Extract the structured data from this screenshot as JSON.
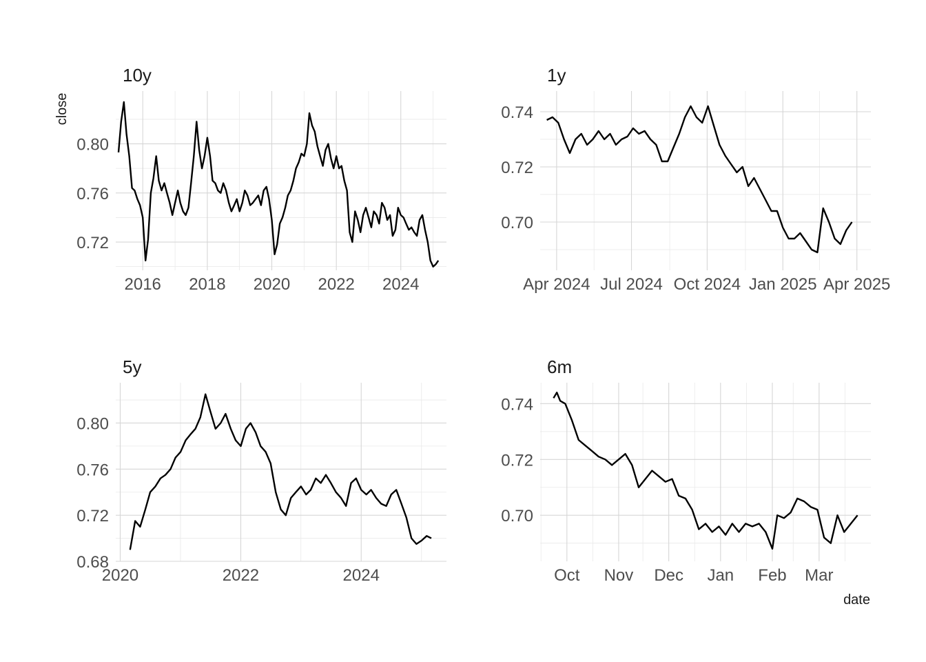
{
  "chart_data": [
    {
      "type": "line",
      "title": "10y",
      "xlabel": "",
      "ylabel": "close",
      "x_ticks": [
        {
          "value": "2016-01-01",
          "label": "2016"
        },
        {
          "value": "2018-01-01",
          "label": "2018"
        },
        {
          "value": "2020-01-01",
          "label": "2020"
        },
        {
          "value": "2022-01-01",
          "label": "2022"
        },
        {
          "value": "2024-01-01",
          "label": "2024"
        }
      ],
      "y_ticks": [
        0.72,
        0.76,
        0.8
      ],
      "xlim": [
        "2015-03-01",
        "2025-06-01"
      ],
      "ylim": [
        0.697,
        0.843
      ],
      "grid": true,
      "series": [
        {
          "x": [
            "2015-04",
            "2015-05",
            "2015-06",
            "2015-07",
            "2015-08",
            "2015-09",
            "2015-10",
            "2015-11",
            "2015-12",
            "2016-01",
            "2016-02",
            "2016-03",
            "2016-04",
            "2016-05",
            "2016-06",
            "2016-07",
            "2016-08",
            "2016-09",
            "2016-10",
            "2016-11",
            "2016-12",
            "2017-01",
            "2017-02",
            "2017-03",
            "2017-04",
            "2017-05",
            "2017-06",
            "2017-07",
            "2017-08",
            "2017-09",
            "2017-10",
            "2017-11",
            "2017-12",
            "2018-01",
            "2018-02",
            "2018-03",
            "2018-04",
            "2018-05",
            "2018-06",
            "2018-07",
            "2018-08",
            "2018-09",
            "2018-10",
            "2018-11",
            "2018-12",
            "2019-01",
            "2019-02",
            "2019-03",
            "2019-04",
            "2019-05",
            "2019-06",
            "2019-07",
            "2019-08",
            "2019-09",
            "2019-10",
            "2019-11",
            "2019-12",
            "2020-01",
            "2020-02",
            "2020-03",
            "2020-04",
            "2020-05",
            "2020-06",
            "2020-07",
            "2020-08",
            "2020-09",
            "2020-10",
            "2020-11",
            "2020-12",
            "2021-01",
            "2021-02",
            "2021-03",
            "2021-04",
            "2021-05",
            "2021-06",
            "2021-07",
            "2021-08",
            "2021-09",
            "2021-10",
            "2021-11",
            "2021-12",
            "2022-01",
            "2022-02",
            "2022-03",
            "2022-04",
            "2022-05",
            "2022-06",
            "2022-07",
            "2022-08",
            "2022-09",
            "2022-10",
            "2022-11",
            "2022-12",
            "2023-01",
            "2023-02",
            "2023-03",
            "2023-04",
            "2023-05",
            "2023-06",
            "2023-07",
            "2023-08",
            "2023-09",
            "2023-10",
            "2023-11",
            "2023-12",
            "2024-01",
            "2024-02",
            "2024-03",
            "2024-04",
            "2024-05",
            "2024-06",
            "2024-07",
            "2024-08",
            "2024-09",
            "2024-10",
            "2024-11",
            "2024-12",
            "2025-01",
            "2025-02",
            "2025-03"
          ],
          "y": [
            0.793,
            0.818,
            0.834,
            0.808,
            0.79,
            0.764,
            0.762,
            0.755,
            0.75,
            0.74,
            0.705,
            0.722,
            0.76,
            0.772,
            0.79,
            0.77,
            0.762,
            0.768,
            0.76,
            0.752,
            0.742,
            0.752,
            0.762,
            0.752,
            0.745,
            0.742,
            0.748,
            0.768,
            0.79,
            0.818,
            0.795,
            0.78,
            0.79,
            0.805,
            0.79,
            0.77,
            0.768,
            0.762,
            0.76,
            0.768,
            0.762,
            0.752,
            0.745,
            0.75,
            0.755,
            0.745,
            0.752,
            0.762,
            0.758,
            0.75,
            0.752,
            0.755,
            0.758,
            0.75,
            0.762,
            0.765,
            0.755,
            0.738,
            0.71,
            0.718,
            0.735,
            0.74,
            0.748,
            0.758,
            0.762,
            0.77,
            0.78,
            0.785,
            0.792,
            0.79,
            0.8,
            0.825,
            0.815,
            0.81,
            0.798,
            0.79,
            0.782,
            0.795,
            0.8,
            0.788,
            0.78,
            0.79,
            0.78,
            0.782,
            0.77,
            0.762,
            0.728,
            0.72,
            0.745,
            0.738,
            0.728,
            0.742,
            0.748,
            0.74,
            0.732,
            0.745,
            0.742,
            0.735,
            0.752,
            0.748,
            0.738,
            0.742,
            0.725,
            0.73,
            0.748,
            0.742,
            0.74,
            0.735,
            0.73,
            0.732,
            0.728,
            0.725,
            0.738,
            0.742,
            0.73,
            0.72,
            0.705,
            0.7,
            0.702,
            0.705
          ]
        }
      ]
    },
    {
      "type": "line",
      "title": "1y",
      "xlabel": "",
      "ylabel": "",
      "x_ticks": [
        {
          "value": "2024-04-01",
          "label": "Apr 2024"
        },
        {
          "value": "2024-07-01",
          "label": "Jul 2024"
        },
        {
          "value": "2024-10-01",
          "label": "Oct 2024"
        },
        {
          "value": "2025-01-01",
          "label": "Jan 2025"
        },
        {
          "value": "2025-04-01",
          "label": "Apr 2025"
        }
      ],
      "y_ticks": [
        0.7,
        0.72,
        0.74
      ],
      "xlim": [
        "2024-03-12",
        "2025-04-18"
      ],
      "ylim": [
        0.6825,
        0.7475
      ],
      "grid": true,
      "series": [
        {
          "x": [
            "2024-03-20",
            "2024-03-27",
            "2024-04-03",
            "2024-04-10",
            "2024-04-17",
            "2024-04-24",
            "2024-05-01",
            "2024-05-08",
            "2024-05-15",
            "2024-05-22",
            "2024-05-29",
            "2024-06-05",
            "2024-06-12",
            "2024-06-19",
            "2024-06-26",
            "2024-07-03",
            "2024-07-10",
            "2024-07-17",
            "2024-07-24",
            "2024-07-31",
            "2024-08-07",
            "2024-08-14",
            "2024-08-21",
            "2024-08-28",
            "2024-09-04",
            "2024-09-11",
            "2024-09-18",
            "2024-09-25",
            "2024-10-02",
            "2024-10-09",
            "2024-10-16",
            "2024-10-23",
            "2024-10-30",
            "2024-11-06",
            "2024-11-13",
            "2024-11-20",
            "2024-11-27",
            "2024-12-04",
            "2024-12-11",
            "2024-12-18",
            "2024-12-25",
            "2025-01-01",
            "2025-01-08",
            "2025-01-15",
            "2025-01-22",
            "2025-01-29",
            "2025-02-05",
            "2025-02-12",
            "2025-02-19",
            "2025-02-26",
            "2025-03-05",
            "2025-03-12",
            "2025-03-19",
            "2025-03-26"
          ],
          "y": [
            0.737,
            0.738,
            0.736,
            0.73,
            0.725,
            0.73,
            0.732,
            0.728,
            0.73,
            0.733,
            0.73,
            0.732,
            0.728,
            0.73,
            0.731,
            0.734,
            0.732,
            0.733,
            0.73,
            0.728,
            0.722,
            0.722,
            0.727,
            0.732,
            0.738,
            0.742,
            0.738,
            0.736,
            0.742,
            0.735,
            0.728,
            0.724,
            0.721,
            0.718,
            0.72,
            0.713,
            0.716,
            0.712,
            0.708,
            0.704,
            0.704,
            0.698,
            0.694,
            0.694,
            0.696,
            0.693,
            0.69,
            0.689,
            0.705,
            0.7,
            0.694,
            0.692,
            0.697,
            0.7
          ]
        }
      ]
    },
    {
      "type": "line",
      "title": "5y",
      "xlabel": "",
      "ylabel": "",
      "x_ticks": [
        {
          "value": "2020-01-01",
          "label": "2020"
        },
        {
          "value": "2022-01-01",
          "label": "2022"
        },
        {
          "value": "2024-01-01",
          "label": "2024"
        }
      ],
      "y_ticks": [
        0.68,
        0.72,
        0.76,
        0.8
      ],
      "xlim": [
        "2019-12-05",
        "2025-06-01"
      ],
      "ylim": [
        0.68,
        0.835
      ],
      "grid": true,
      "series": [
        {
          "x": [
            "2020-03",
            "2020-04",
            "2020-05",
            "2020-06",
            "2020-07",
            "2020-08",
            "2020-09",
            "2020-10",
            "2020-11",
            "2020-12",
            "2021-01",
            "2021-02",
            "2021-03",
            "2021-04",
            "2021-05",
            "2021-06",
            "2021-07",
            "2021-08",
            "2021-09",
            "2021-10",
            "2021-11",
            "2021-12",
            "2022-01",
            "2022-02",
            "2022-03",
            "2022-04",
            "2022-05",
            "2022-06",
            "2022-07",
            "2022-08",
            "2022-09",
            "2022-10",
            "2022-11",
            "2022-12",
            "2023-01",
            "2023-02",
            "2023-03",
            "2023-04",
            "2023-05",
            "2023-06",
            "2023-07",
            "2023-08",
            "2023-09",
            "2023-10",
            "2023-11",
            "2023-12",
            "2024-01",
            "2024-02",
            "2024-03",
            "2024-04",
            "2024-05",
            "2024-06",
            "2024-07",
            "2024-08",
            "2024-09",
            "2024-10",
            "2024-11",
            "2024-12",
            "2025-01",
            "2025-02",
            "2025-03"
          ],
          "y": [
            0.69,
            0.715,
            0.71,
            0.725,
            0.74,
            0.745,
            0.752,
            0.755,
            0.76,
            0.77,
            0.775,
            0.785,
            0.79,
            0.795,
            0.805,
            0.825,
            0.81,
            0.795,
            0.8,
            0.808,
            0.795,
            0.785,
            0.78,
            0.795,
            0.8,
            0.792,
            0.78,
            0.775,
            0.765,
            0.74,
            0.725,
            0.72,
            0.735,
            0.74,
            0.745,
            0.738,
            0.742,
            0.752,
            0.748,
            0.755,
            0.748,
            0.74,
            0.735,
            0.728,
            0.748,
            0.752,
            0.742,
            0.738,
            0.742,
            0.735,
            0.73,
            0.728,
            0.738,
            0.742,
            0.73,
            0.718,
            0.7,
            0.695,
            0.698,
            0.702,
            0.7
          ]
        }
      ]
    },
    {
      "type": "line",
      "title": "6m",
      "xlabel": "date",
      "ylabel": "",
      "x_ticks": [
        {
          "value": "2024-10-01",
          "label": "Oct"
        },
        {
          "value": "2024-11-01",
          "label": "Nov"
        },
        {
          "value": "2024-12-01",
          "label": "Dec"
        },
        {
          "value": "2025-01-01",
          "label": "Jan"
        },
        {
          "value": "2025-02-01",
          "label": "Feb"
        },
        {
          "value": "2025-03-01",
          "label": "Mar"
        }
      ],
      "y_ticks": [
        0.7,
        0.72,
        0.74
      ],
      "xlim": [
        "2024-09-15",
        "2025-04-01"
      ],
      "ylim": [
        0.6835,
        0.7475
      ],
      "grid": true,
      "series": [
        {
          "x": [
            "2024-09-23",
            "2024-09-25",
            "2024-09-27",
            "2024-09-30",
            "2024-10-04",
            "2024-10-08",
            "2024-10-12",
            "2024-10-16",
            "2024-10-20",
            "2024-10-24",
            "2024-10-28",
            "2024-11-01",
            "2024-11-05",
            "2024-11-09",
            "2024-11-13",
            "2024-11-17",
            "2024-11-21",
            "2024-11-25",
            "2024-11-29",
            "2024-12-03",
            "2024-12-07",
            "2024-12-11",
            "2024-12-15",
            "2024-12-19",
            "2024-12-23",
            "2024-12-27",
            "2024-12-31",
            "2025-01-04",
            "2025-01-08",
            "2025-01-12",
            "2025-01-16",
            "2025-01-20",
            "2025-01-24",
            "2025-01-28",
            "2025-02-01",
            "2025-02-04",
            "2025-02-08",
            "2025-02-12",
            "2025-02-16",
            "2025-02-20",
            "2025-02-24",
            "2025-02-28",
            "2025-03-04",
            "2025-03-08",
            "2025-03-12",
            "2025-03-16",
            "2025-03-20",
            "2025-03-24"
          ],
          "y": [
            0.742,
            0.744,
            0.741,
            0.74,
            0.734,
            0.727,
            0.725,
            0.723,
            0.721,
            0.72,
            0.718,
            0.72,
            0.722,
            0.718,
            0.71,
            0.713,
            0.716,
            0.714,
            0.712,
            0.713,
            0.707,
            0.706,
            0.702,
            0.695,
            0.697,
            0.694,
            0.696,
            0.693,
            0.697,
            0.694,
            0.697,
            0.696,
            0.697,
            0.694,
            0.688,
            0.7,
            0.699,
            0.701,
            0.706,
            0.705,
            0.703,
            0.702,
            0.692,
            0.69,
            0.7,
            0.694,
            0.697,
            0.7
          ]
        }
      ]
    }
  ]
}
